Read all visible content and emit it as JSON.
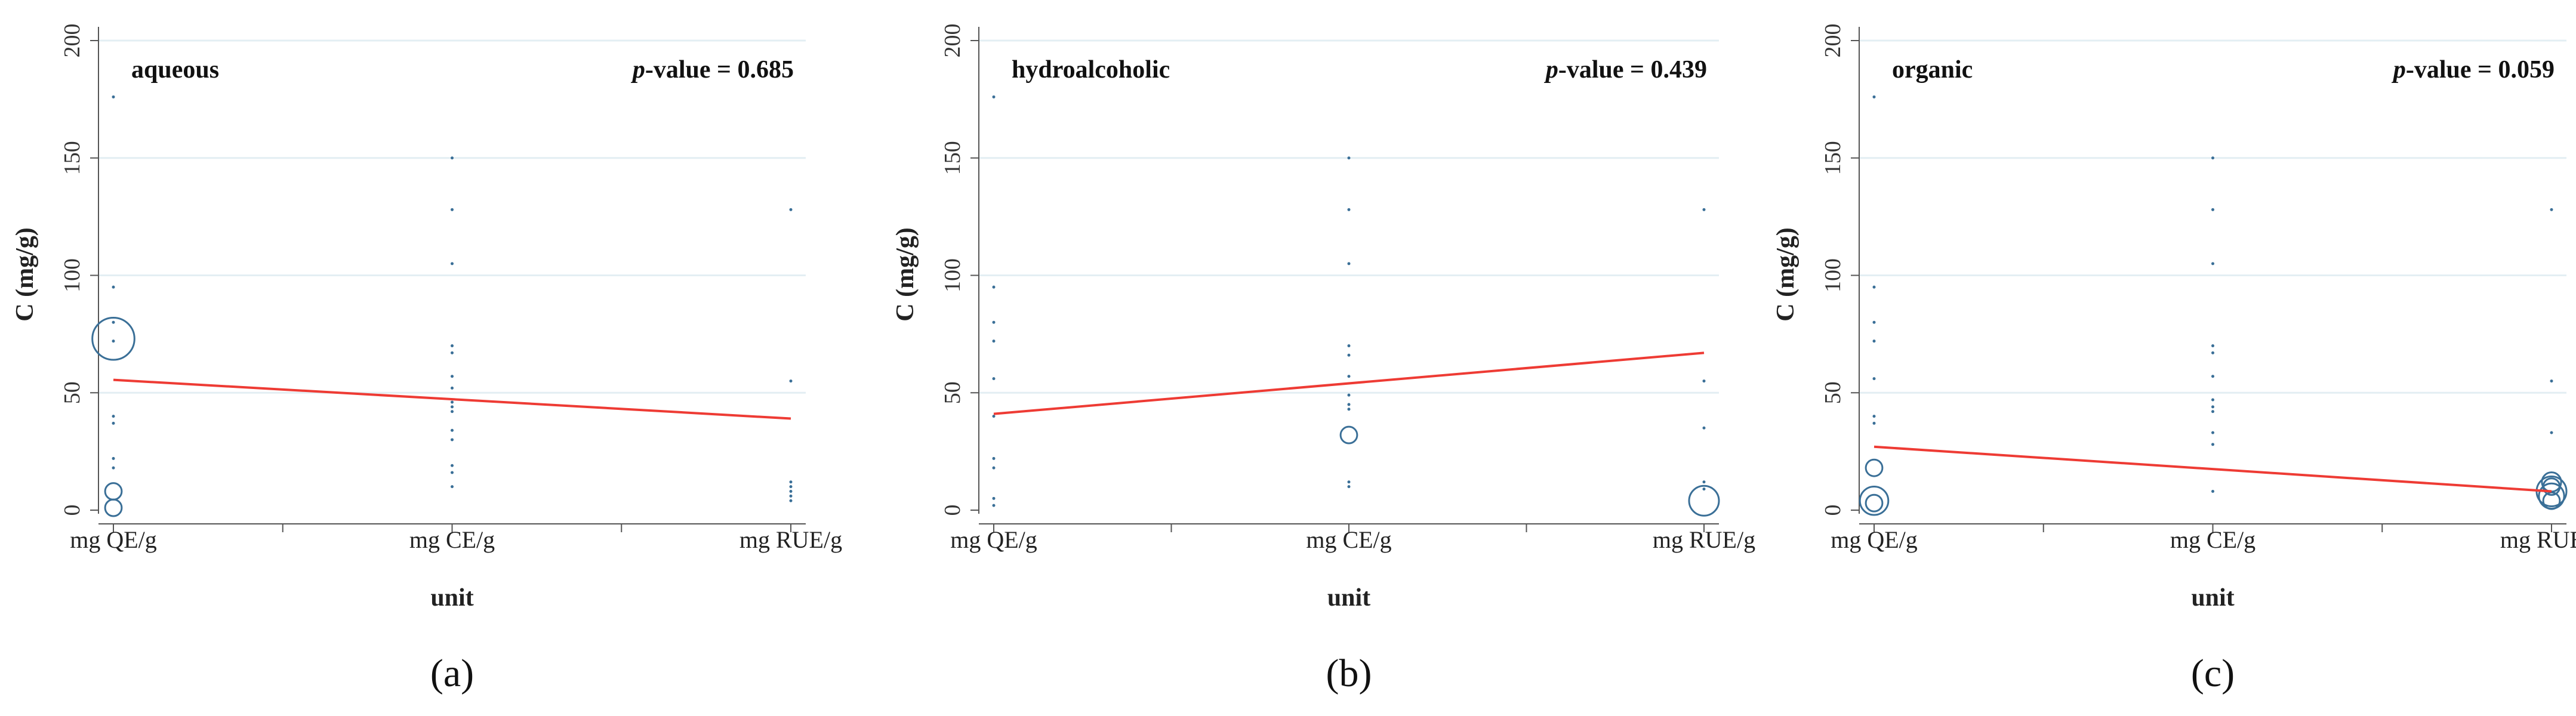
{
  "figure": {
    "line_color": "#ee3b34",
    "marker_color": "#3a6f97",
    "grid_color": "#e3eef3",
    "axis_color": "#555555"
  },
  "chart_data": [
    {
      "type": "scatter",
      "panel_label": "(a)",
      "label_letter": "a",
      "solvent": "aqueous",
      "p_label": "p",
      "p_value_text": "-value = 0.685",
      "xlabel": "unit",
      "ylabel": "C (mg/g)",
      "categories": [
        "mg QE/g",
        "mg CE/g",
        "mg RUE/g"
      ],
      "yticks": [
        0,
        50,
        100,
        150,
        200
      ],
      "ylim": [
        0,
        200
      ],
      "fit_line": {
        "start": [
          0,
          55.5
        ],
        "end": [
          2,
          39
        ]
      },
      "points": [
        {
          "x": 0,
          "y": 176,
          "w": 1
        },
        {
          "x": 0,
          "y": 95,
          "w": 1
        },
        {
          "x": 0,
          "y": 80,
          "w": 1
        },
        {
          "x": 0,
          "y": 73,
          "w": 20
        },
        {
          "x": 0,
          "y": 72,
          "w": 1
        },
        {
          "x": 0,
          "y": 40,
          "w": 1
        },
        {
          "x": 0,
          "y": 37,
          "w": 1
        },
        {
          "x": 0,
          "y": 22,
          "w": 1
        },
        {
          "x": 0,
          "y": 18,
          "w": 1
        },
        {
          "x": 0,
          "y": 8,
          "w": 2
        },
        {
          "x": 0,
          "y": 1,
          "w": 2
        },
        {
          "x": 1,
          "y": 150,
          "w": 1
        },
        {
          "x": 1,
          "y": 128,
          "w": 1
        },
        {
          "x": 1,
          "y": 105,
          "w": 1
        },
        {
          "x": 1,
          "y": 70,
          "w": 1
        },
        {
          "x": 1,
          "y": 67,
          "w": 1
        },
        {
          "x": 1,
          "y": 57,
          "w": 1
        },
        {
          "x": 1,
          "y": 52,
          "w": 1
        },
        {
          "x": 1,
          "y": 46,
          "w": 1
        },
        {
          "x": 1,
          "y": 44,
          "w": 1
        },
        {
          "x": 1,
          "y": 42,
          "w": 1
        },
        {
          "x": 1,
          "y": 34,
          "w": 1
        },
        {
          "x": 1,
          "y": 30,
          "w": 1
        },
        {
          "x": 1,
          "y": 19,
          "w": 1
        },
        {
          "x": 1,
          "y": 16,
          "w": 1
        },
        {
          "x": 1,
          "y": 10,
          "w": 1
        },
        {
          "x": 2,
          "y": 128,
          "w": 1
        },
        {
          "x": 2,
          "y": 55,
          "w": 1
        },
        {
          "x": 2,
          "y": 12,
          "w": 1
        },
        {
          "x": 2,
          "y": 10,
          "w": 1
        },
        {
          "x": 2,
          "y": 8,
          "w": 1
        },
        {
          "x": 2,
          "y": 6,
          "w": 1
        },
        {
          "x": 2,
          "y": 4,
          "w": 1
        }
      ]
    },
    {
      "type": "scatter",
      "panel_label": "(b)",
      "label_letter": "b",
      "solvent": "hydroalcoholic",
      "p_label": "p",
      "p_value_text": "-value = 0.439",
      "xlabel": "unit",
      "ylabel": "C (mg/g)",
      "categories": [
        "mg QE/g",
        "mg CE/g",
        "mg RUE/g"
      ],
      "yticks": [
        0,
        50,
        100,
        150,
        200
      ],
      "ylim": [
        0,
        200
      ],
      "fit_line": {
        "start": [
          0,
          41
        ],
        "end": [
          2,
          67
        ]
      },
      "points": [
        {
          "x": 0,
          "y": 176,
          "w": 1
        },
        {
          "x": 0,
          "y": 95,
          "w": 1
        },
        {
          "x": 0,
          "y": 80,
          "w": 1
        },
        {
          "x": 0,
          "y": 72,
          "w": 1
        },
        {
          "x": 0,
          "y": 56,
          "w": 1
        },
        {
          "x": 0,
          "y": 40,
          "w": 1
        },
        {
          "x": 0,
          "y": 22,
          "w": 1
        },
        {
          "x": 0,
          "y": 18,
          "w": 1
        },
        {
          "x": 0,
          "y": 5,
          "w": 1
        },
        {
          "x": 0,
          "y": 2,
          "w": 1
        },
        {
          "x": 1,
          "y": 150,
          "w": 1
        },
        {
          "x": 1,
          "y": 128,
          "w": 1
        },
        {
          "x": 1,
          "y": 105,
          "w": 1
        },
        {
          "x": 1,
          "y": 70,
          "w": 1
        },
        {
          "x": 1,
          "y": 66,
          "w": 1
        },
        {
          "x": 1,
          "y": 57,
          "w": 1
        },
        {
          "x": 1,
          "y": 49,
          "w": 1
        },
        {
          "x": 1,
          "y": 45,
          "w": 1
        },
        {
          "x": 1,
          "y": 43,
          "w": 1
        },
        {
          "x": 1,
          "y": 32,
          "w": 2
        },
        {
          "x": 1,
          "y": 12,
          "w": 1
        },
        {
          "x": 1,
          "y": 10,
          "w": 1
        },
        {
          "x": 2,
          "y": 128,
          "w": 1
        },
        {
          "x": 2,
          "y": 55,
          "w": 1
        },
        {
          "x": 2,
          "y": 35,
          "w": 1
        },
        {
          "x": 2,
          "y": 4,
          "w": 9
        },
        {
          "x": 2,
          "y": 12,
          "w": 1
        },
        {
          "x": 2,
          "y": 9,
          "w": 1
        }
      ]
    },
    {
      "type": "scatter",
      "panel_label": "(c)",
      "label_letter": "c",
      "solvent": "organic",
      "p_label": "p",
      "p_value_text": "-value = 0.059",
      "xlabel": "unit",
      "ylabel": "C (mg/g)",
      "categories": [
        "mg QE/g",
        "mg CE/g",
        "mg RUE/g"
      ],
      "yticks": [
        0,
        50,
        100,
        150,
        200
      ],
      "ylim": [
        0,
        200
      ],
      "fit_line": {
        "start": [
          0,
          27
        ],
        "end": [
          2,
          8
        ]
      },
      "points": [
        {
          "x": 0,
          "y": 176,
          "w": 1
        },
        {
          "x": 0,
          "y": 95,
          "w": 1
        },
        {
          "x": 0,
          "y": 80,
          "w": 1
        },
        {
          "x": 0,
          "y": 72,
          "w": 1
        },
        {
          "x": 0,
          "y": 56,
          "w": 1
        },
        {
          "x": 0,
          "y": 40,
          "w": 1
        },
        {
          "x": 0,
          "y": 37,
          "w": 1
        },
        {
          "x": 0,
          "y": 18,
          "w": 2
        },
        {
          "x": 0,
          "y": 4,
          "w": 8
        },
        {
          "x": 0,
          "y": 3,
          "w": 2
        },
        {
          "x": 1,
          "y": 150,
          "w": 1
        },
        {
          "x": 1,
          "y": 128,
          "w": 1
        },
        {
          "x": 1,
          "y": 105,
          "w": 1
        },
        {
          "x": 1,
          "y": 70,
          "w": 1
        },
        {
          "x": 1,
          "y": 67,
          "w": 1
        },
        {
          "x": 1,
          "y": 57,
          "w": 1
        },
        {
          "x": 1,
          "y": 47,
          "w": 1
        },
        {
          "x": 1,
          "y": 44,
          "w": 1
        },
        {
          "x": 1,
          "y": 42,
          "w": 1
        },
        {
          "x": 1,
          "y": 33,
          "w": 1
        },
        {
          "x": 1,
          "y": 28,
          "w": 1
        },
        {
          "x": 1,
          "y": 8,
          "w": 1
        },
        {
          "x": 2,
          "y": 128,
          "w": 1
        },
        {
          "x": 2,
          "y": 55,
          "w": 1
        },
        {
          "x": 2,
          "y": 33,
          "w": 1
        },
        {
          "x": 2,
          "y": 8,
          "w": 9
        },
        {
          "x": 2,
          "y": 6,
          "w": 6
        },
        {
          "x": 2,
          "y": 12,
          "w": 3
        },
        {
          "x": 2,
          "y": 10,
          "w": 2
        },
        {
          "x": 2,
          "y": 4,
          "w": 2
        }
      ]
    }
  ]
}
